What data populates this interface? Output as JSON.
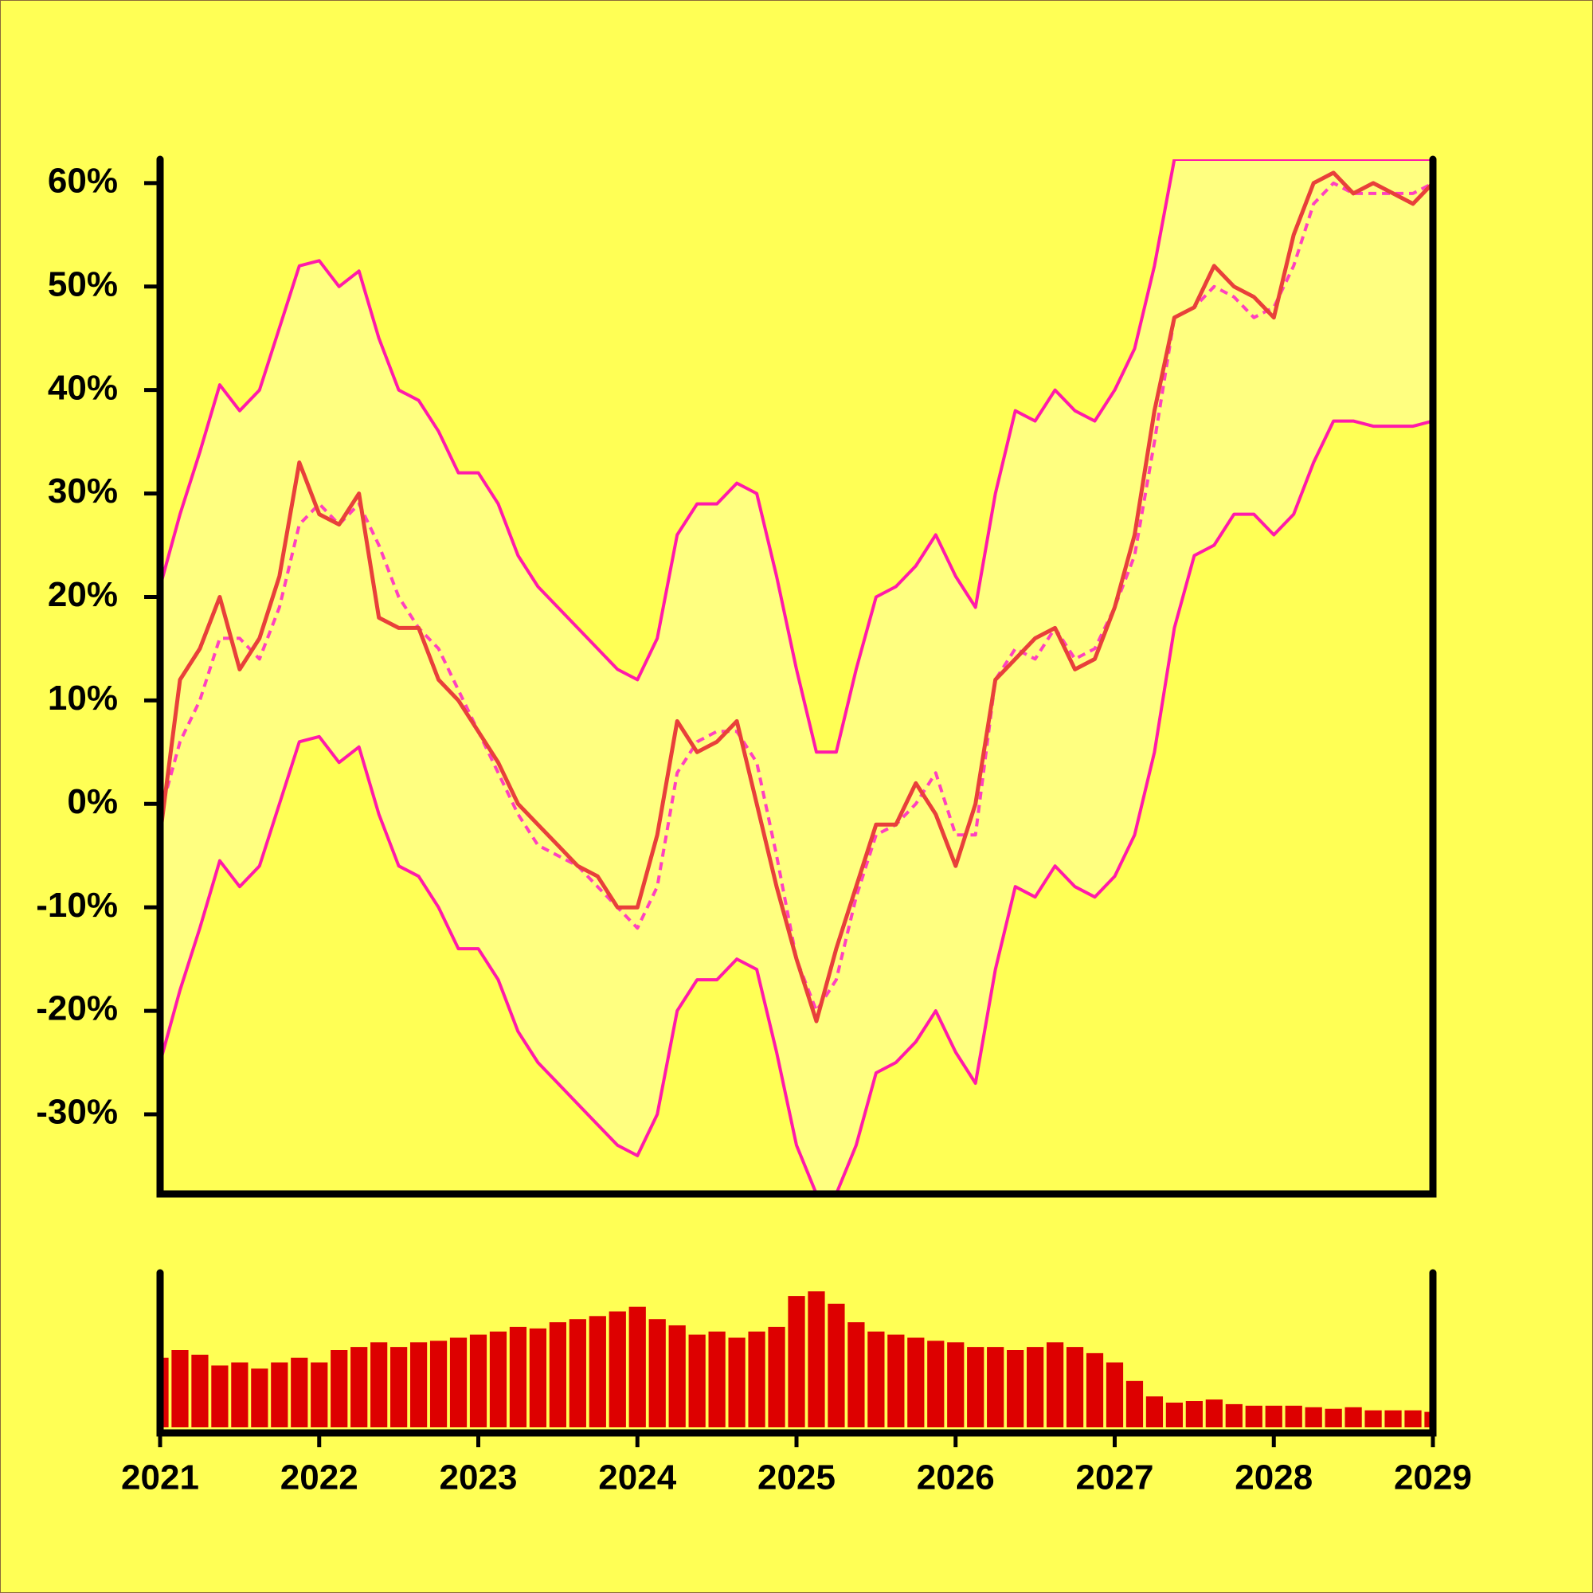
{
  "chart_data": [
    {
      "type": "line",
      "background": "#ffff55",
      "xlim": [
        2021,
        2029
      ],
      "ylim": [
        -37.7,
        62.3
      ],
      "yticks": [
        {
          "value": -30,
          "label": "-30%"
        },
        {
          "value": -20,
          "label": "-20%"
        },
        {
          "value": -10,
          "label": "-10%"
        },
        {
          "value": 0,
          "label": "0%"
        },
        {
          "value": 10,
          "label": "10%"
        },
        {
          "value": 20,
          "label": "20%"
        },
        {
          "value": 30,
          "label": "30%"
        },
        {
          "value": 40,
          "label": "40%"
        },
        {
          "value": 50,
          "label": "50%"
        },
        {
          "value": 60,
          "label": "60%"
        }
      ],
      "x": [
        2021,
        2021.125,
        2021.25,
        2021.375,
        2021.5,
        2021.625,
        2021.75,
        2021.875,
        2022,
        2022.125,
        2022.25,
        2022.375,
        2022.5,
        2022.625,
        2022.75,
        2022.875,
        2023,
        2023.125,
        2023.25,
        2023.375,
        2023.5,
        2023.625,
        2023.75,
        2023.875,
        2024,
        2024.125,
        2024.25,
        2024.375,
        2024.5,
        2024.625,
        2024.75,
        2024.875,
        2025,
        2025.125,
        2025.25,
        2025.375,
        2025.5,
        2025.625,
        2025.75,
        2025.875,
        2026,
        2026.125,
        2026.25,
        2026.375,
        2026.5,
        2026.625,
        2026.75,
        2026.875,
        2027,
        2027.125,
        2027.25,
        2027.375,
        2027.5,
        2027.625,
        2027.75,
        2027.875,
        2028,
        2028.125,
        2028.25,
        2028.375,
        2028.5,
        2028.625,
        2028.75,
        2028.875,
        2029
      ],
      "band": {
        "series": [
          2,
          3
        ],
        "color": "#ffff80"
      },
      "series": [
        {
          "color": "#e8403a",
          "width": 5,
          "dashed": false,
          "values": [
            -3,
            12,
            15,
            20,
            13,
            16,
            22,
            33,
            28,
            27,
            30,
            18,
            17,
            17,
            12,
            10,
            7,
            4,
            0,
            -2,
            -4,
            -6,
            -7,
            -10,
            -10,
            -3,
            8,
            5,
            6,
            8,
            0,
            -8,
            -15,
            -21,
            -14,
            -8,
            -2,
            -2,
            2,
            -1,
            -6,
            0,
            12,
            14,
            16,
            17,
            13,
            14,
            19,
            26,
            38,
            47,
            48,
            52,
            50,
            49,
            47,
            55,
            60,
            61,
            59,
            60,
            59,
            58,
            60
          ]
        },
        {
          "color": "#ff40c0",
          "width": 4,
          "dashed": true,
          "values": [
            -1,
            6,
            10,
            16,
            16,
            14,
            19,
            27,
            29,
            27,
            29,
            25,
            20,
            17,
            15,
            11,
            7,
            3,
            -1,
            -4,
            -5,
            -6,
            -8,
            -10,
            -12,
            -8,
            3,
            6,
            7,
            7,
            4,
            -5,
            -15,
            -20,
            -17,
            -9,
            -3,
            -2,
            0,
            3,
            -3,
            -3,
            12,
            15,
            14,
            17,
            14,
            15,
            19,
            24,
            35,
            47,
            48,
            50,
            49,
            47,
            48,
            52,
            58,
            60,
            59,
            59,
            59,
            59,
            60
          ]
        },
        {
          "color": "#ff1aaa",
          "width": 4,
          "dashed": false,
          "values": [
            21,
            28,
            34,
            40.5,
            38,
            40,
            46,
            52,
            52.5,
            50,
            51.5,
            45,
            40,
            39,
            36,
            32,
            32,
            29,
            24,
            21,
            19,
            17,
            15,
            13,
            12,
            16,
            26,
            29,
            29,
            31,
            30,
            22,
            13,
            5,
            5,
            13,
            20,
            21,
            23,
            26,
            22,
            19,
            30,
            38,
            37,
            40,
            38,
            37,
            40,
            44,
            52,
            62.3,
            62.3,
            62.3,
            62.3,
            62.3,
            62.3,
            62.3,
            62.3,
            62.3,
            62.3,
            62.3,
            62.3,
            62.3,
            62.3
          ]
        },
        {
          "color": "#ff1aaa",
          "width": 4,
          "dashed": false,
          "values": [
            -25,
            -18,
            -12,
            -5.5,
            -8,
            -6,
            0,
            6,
            6.5,
            4,
            5.5,
            -1,
            -6,
            -7,
            -10,
            -14,
            -14,
            -17,
            -22,
            -25,
            -27,
            -29,
            -31,
            -33,
            -34,
            -30,
            -20,
            -17,
            -17,
            -15,
            -16,
            -24,
            -33,
            -37.7,
            -37.7,
            -33,
            -26,
            -25,
            -23,
            -20,
            -24,
            -27,
            -16,
            -8,
            -9,
            -6,
            -8,
            -9,
            -7,
            -3,
            5,
            17,
            24,
            25,
            28,
            28,
            26,
            28,
            33,
            37,
            37,
            36.5,
            36.5,
            36.5,
            37
          ]
        }
      ]
    },
    {
      "type": "bar",
      "color": "#dd0000",
      "xlim": [
        2021,
        2029
      ],
      "ylim": [
        0,
        100
      ],
      "xticks": [
        2021,
        2022,
        2023,
        2024,
        2025,
        2026,
        2027,
        2028,
        2029
      ],
      "x": [
        2021,
        2021.125,
        2021.25,
        2021.375,
        2021.5,
        2021.625,
        2021.75,
        2021.875,
        2022,
        2022.125,
        2022.25,
        2022.375,
        2022.5,
        2022.625,
        2022.75,
        2022.875,
        2023,
        2023.125,
        2023.25,
        2023.375,
        2023.5,
        2023.625,
        2023.75,
        2023.875,
        2024,
        2024.125,
        2024.25,
        2024.375,
        2024.5,
        2024.625,
        2024.75,
        2024.875,
        2025,
        2025.125,
        2025.25,
        2025.375,
        2025.5,
        2025.625,
        2025.75,
        2025.875,
        2026,
        2026.125,
        2026.25,
        2026.375,
        2026.5,
        2026.625,
        2026.75,
        2026.875,
        2027,
        2027.125,
        2027.25,
        2027.375,
        2027.5,
        2027.625,
        2027.75,
        2027.875,
        2028,
        2028.125,
        2028.25,
        2028.375,
        2028.5,
        2028.625,
        2028.75,
        2028.875,
        2029
      ],
      "values": [
        45,
        50,
        47,
        40,
        42,
        38,
        42,
        45,
        42,
        50,
        52,
        55,
        52,
        55,
        56,
        58,
        60,
        62,
        65,
        64,
        68,
        70,
        72,
        75,
        78,
        70,
        66,
        60,
        62,
        58,
        62,
        65,
        85,
        88,
        80,
        68,
        62,
        60,
        58,
        56,
        55,
        52,
        52,
        50,
        52,
        55,
        52,
        48,
        42,
        30,
        20,
        16,
        17,
        18,
        15,
        14,
        14,
        14,
        13,
        12,
        13,
        11,
        11,
        11,
        10
      ]
    }
  ]
}
